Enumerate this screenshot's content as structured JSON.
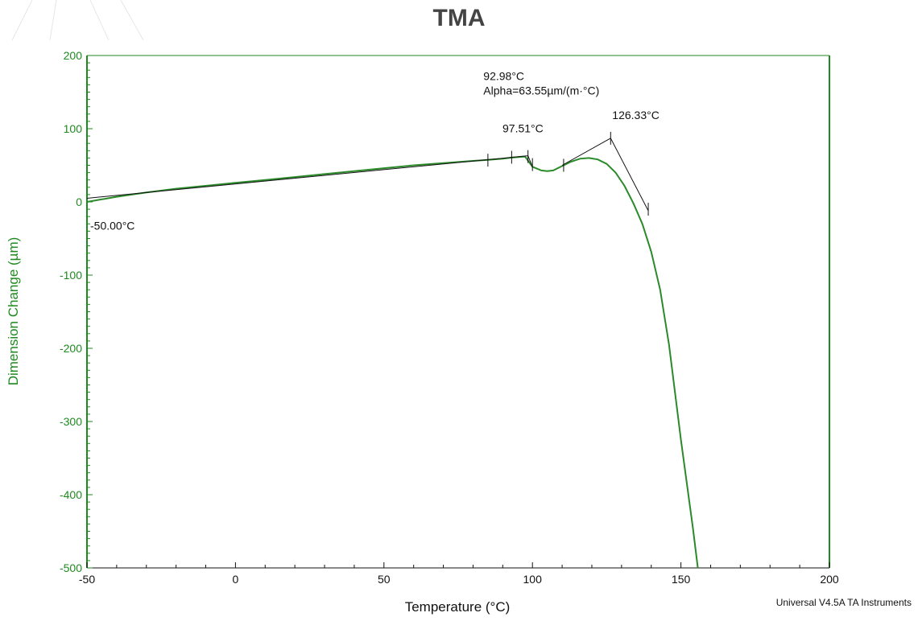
{
  "colors": {
    "axis": "#1f8a1f",
    "curve": "#2a8a2a",
    "analysis": "#111111",
    "title": "#444444"
  },
  "chart_data": {
    "type": "line",
    "title": "TMA",
    "xlabel": "Temperature (°C)",
    "ylabel": "Dimension Change (µm)",
    "xlim": [
      -50,
      200
    ],
    "ylim": [
      -500,
      200
    ],
    "x_ticks": [
      -50,
      0,
      50,
      100,
      150,
      200
    ],
    "y_ticks": [
      200,
      100,
      0,
      -100,
      -200,
      -300,
      -400,
      -500
    ],
    "grid": false,
    "series": [
      {
        "x": [
          -50,
          -40,
          -30,
          -20,
          -10,
          0,
          10,
          20,
          30,
          40,
          50,
          60,
          70,
          80,
          85,
          90,
          93,
          97.5,
          100,
          103,
          105,
          107,
          110,
          113,
          116,
          119,
          122,
          125,
          128,
          131,
          134,
          137,
          140,
          143,
          146,
          148,
          150,
          152,
          154,
          155.7
        ],
        "y": [
          0,
          7,
          13,
          18,
          22,
          26,
          30,
          34,
          38,
          42,
          46,
          50,
          53,
          56,
          57.5,
          59,
          60.5,
          62,
          48,
          43,
          42,
          43,
          49,
          55,
          59,
          60,
          58,
          52,
          40,
          22,
          -2,
          -30,
          -68,
          -120,
          -195,
          -260,
          -325,
          -385,
          -445,
          -500
        ]
      }
    ],
    "annotations": [
      {
        "text": "-50.00°C",
        "x": -50,
        "y": -15
      },
      {
        "text": "92.98°C",
        "x": 92.98,
        "y": 60
      },
      {
        "text": "Alpha=63.55µm/(m·°C)",
        "x": 92.98,
        "y": 60
      },
      {
        "text": "97.51°C",
        "x": 97.51,
        "y": 62
      },
      {
        "text": "126.33°C",
        "x": 126.33,
        "y": 87
      }
    ],
    "onset_lines": [
      {
        "x": [
          -50,
          98.5
        ],
        "y": [
          5,
          63
        ]
      },
      {
        "x": [
          98.5,
          100
        ],
        "y": [
          63,
          48
        ]
      },
      {
        "x": [
          110,
          126.33
        ],
        "y": [
          50,
          87
        ]
      },
      {
        "x": [
          126.33,
          139
        ],
        "y": [
          87,
          -12
        ]
      }
    ],
    "markers": [
      {
        "x": 85,
        "y": 57
      },
      {
        "x": 93,
        "y": 61
      },
      {
        "x": 98.5,
        "y": 62
      },
      {
        "x": 100,
        "y": 51
      },
      {
        "x": 110.5,
        "y": 50
      },
      {
        "x": 126.33,
        "y": 87
      },
      {
        "x": 139,
        "y": -10
      }
    ]
  },
  "footer": "Universal V4.5A TA Instruments"
}
